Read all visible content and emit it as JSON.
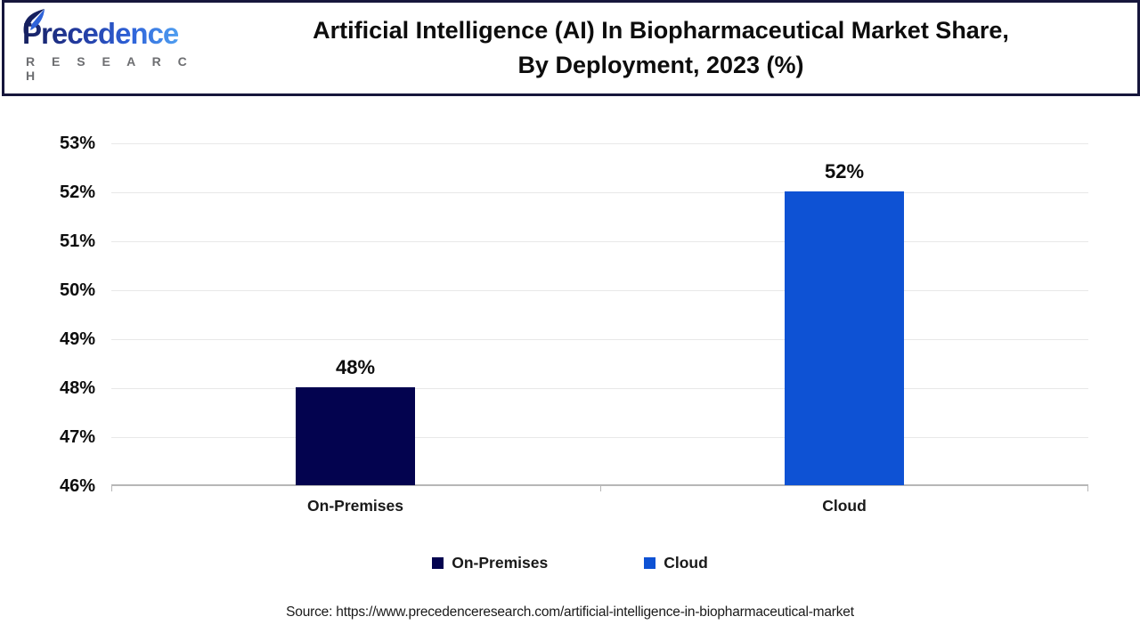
{
  "header": {
    "logo": {
      "brand": "Precedence",
      "subtitle": "R E S E A R C H"
    },
    "title_line1": "Artificial Intelligence (AI) In Biopharmaceutical Market Share,",
    "title_line2": "By Deployment, 2023 (%)"
  },
  "chart_data": {
    "type": "bar",
    "title": "Artificial Intelligence (AI) In Biopharmaceutical Market Share, By Deployment, 2023 (%)",
    "categories": [
      "On-Premises",
      "Cloud"
    ],
    "values": [
      48,
      52
    ],
    "value_labels": [
      "48%",
      "52%"
    ],
    "bar_colors": [
      "#03034F",
      "#0E52D4"
    ],
    "xlabel": "",
    "ylabel": "",
    "ylim": [
      46,
      53
    ],
    "ytick_labels": [
      "53%",
      "52%",
      "51%",
      "50%",
      "49%",
      "48%",
      "47%",
      "46%"
    ],
    "grid": true,
    "legend_position": "bottom"
  },
  "legend": {
    "items": [
      {
        "label": "On-Premises",
        "color": "#03034F"
      },
      {
        "label": "Cloud",
        "color": "#0E52D4"
      }
    ]
  },
  "source": {
    "text": "Source: https://www.precedenceresearch.com/artificial-intelligence-in-biopharmaceutical-market"
  }
}
